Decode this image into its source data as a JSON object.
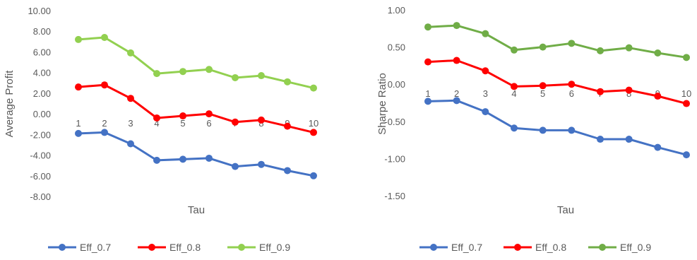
{
  "chart_data": [
    {
      "type": "line",
      "categories": [
        "1",
        "2",
        "3",
        "4",
        "5",
        "6",
        "7",
        "8",
        "9",
        "10"
      ],
      "xlabel": "Tau",
      "ylabel": "Average Profit",
      "ylim": [
        -8,
        10
      ],
      "yticks": [
        "10.00",
        "8.00",
        "6.00",
        "4.00",
        "2.00",
        "0.00",
        "-2.00",
        "-4.00",
        "-6.00",
        "-8.00"
      ],
      "grid": false,
      "legend": "bottom",
      "series": [
        {
          "name": "Eff_0.7",
          "color": "#4472c4",
          "values": [
            -1.9,
            -1.8,
            -2.9,
            -4.5,
            -4.4,
            -4.3,
            -5.1,
            -4.9,
            -5.5,
            -6.0
          ]
        },
        {
          "name": "Eff_0.8",
          "color": "#ff0000",
          "values": [
            2.6,
            2.8,
            1.5,
            -0.4,
            -0.2,
            0.0,
            -0.8,
            -0.6,
            -1.2,
            -1.8
          ]
        },
        {
          "name": "Eff_0.9",
          "color": "#92d050",
          "values": [
            7.2,
            7.4,
            5.9,
            3.9,
            4.1,
            4.3,
            3.5,
            3.7,
            3.1,
            2.5
          ]
        }
      ]
    },
    {
      "type": "line",
      "categories": [
        "1",
        "2",
        "3",
        "4",
        "5",
        "6",
        "7",
        "8",
        "9",
        "10"
      ],
      "xlabel": "Tau",
      "ylabel": "Sharpe Ratio",
      "ylim": [
        -1.5,
        1.0
      ],
      "yticks": [
        "1.00",
        "0.50",
        "0.00",
        "-0.50",
        "-1.00",
        "-1.50"
      ],
      "grid": false,
      "legend": "bottom",
      "series": [
        {
          "name": "Eff_0.7",
          "color": "#4472c4",
          "values": [
            -0.23,
            -0.22,
            -0.37,
            -0.59,
            -0.62,
            -0.62,
            -0.74,
            -0.74,
            -0.85,
            -0.95
          ]
        },
        {
          "name": "Eff_0.8",
          "color": "#ff0000",
          "values": [
            0.3,
            0.32,
            0.18,
            -0.03,
            -0.02,
            0.0,
            -0.1,
            -0.08,
            -0.16,
            -0.26
          ]
        },
        {
          "name": "Eff_0.9",
          "color": "#70ad47",
          "values": [
            0.77,
            0.79,
            0.68,
            0.46,
            0.5,
            0.55,
            0.45,
            0.49,
            0.42,
            0.36
          ]
        }
      ]
    }
  ]
}
